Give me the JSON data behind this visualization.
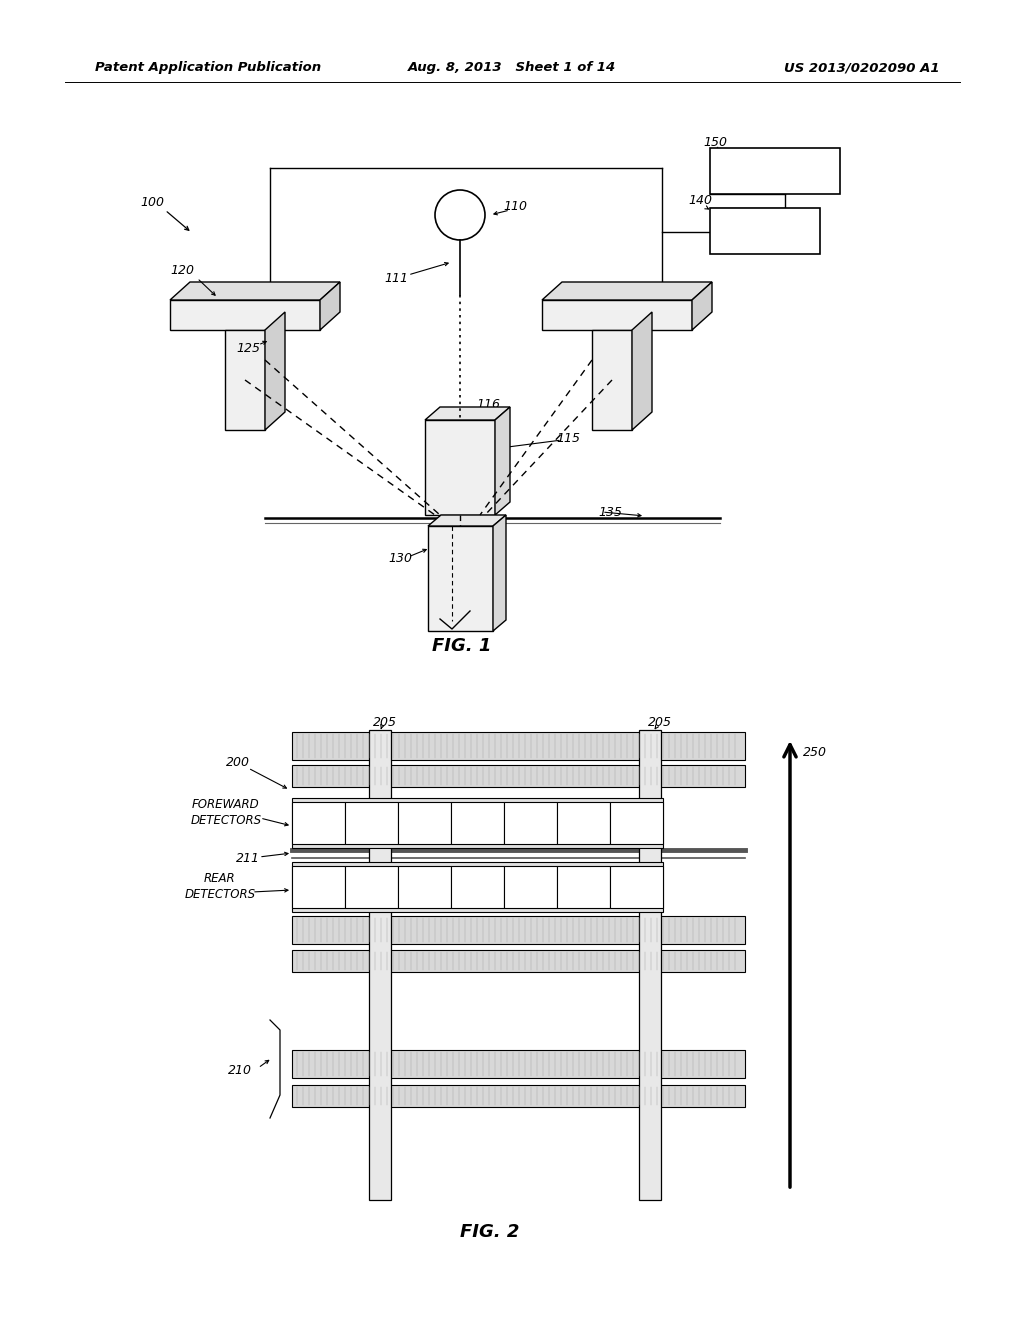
{
  "background_color": "#ffffff",
  "header_left": "Patent Application Publication",
  "header_center": "Aug. 8, 2013   Sheet 1 of 14",
  "header_right": "US 2013/0202090 A1",
  "fig1_caption": "FIG. 1",
  "fig2_caption": "FIG. 2"
}
